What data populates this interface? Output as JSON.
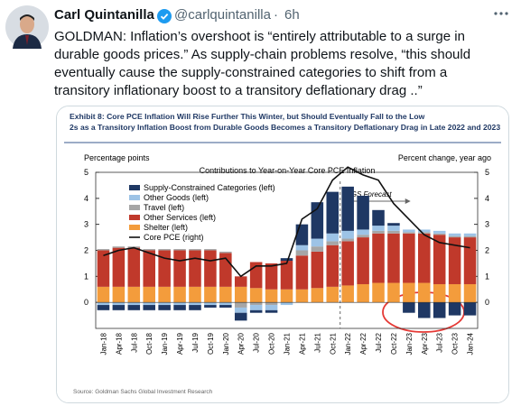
{
  "tweet": {
    "name": "Carl Quintanilla",
    "handle": "@carlquintanilla",
    "separator": "·",
    "time": "6h",
    "text": "GOLDMAN: Inflation’s overshoot is “entirely attributable to a surge in durable goods prices.” As supply-chain problems resolve, “this should eventually cause the supply-constrained categories to shift from a transitory inflationary boost to a transitory deflationary drag ..”"
  },
  "chart_data": {
    "type": "bar",
    "title": "Exhibit 8: Core PCE Inflation Will Rise Further This Winter, but Should Eventually Fall to the Low 2s as a Transitory Inflation Boost from Durable Goods Becomes a Transitory Deflationary Drag in Late 2022 and 2023",
    "subtitle": "Contributions to Year-on-Year Core PCE Inflation",
    "ylabel": "Percentage points",
    "y2label": "Percent change, year ago",
    "annotation": "GS Forecast",
    "source": "Source: Goldman Sachs Global Investment Research",
    "stacked": true,
    "categories": [
      "Jan-18",
      "Apr-18",
      "Jul-18",
      "Oct-18",
      "Jan-19",
      "Apr-19",
      "Jul-19",
      "Oct-19",
      "Jan-20",
      "Apr-20",
      "Jul-20",
      "Oct-20",
      "Jan-21",
      "Apr-21",
      "Jul-21",
      "Oct-21",
      "Jan-22",
      "Apr-22",
      "Jul-22",
      "Oct-22",
      "Jan-23",
      "Apr-23",
      "Jul-23",
      "Oct-23",
      "Jan-24"
    ],
    "series": [
      {
        "name": "Supply-Constrained Categories (left)",
        "color": "#1f3864",
        "values": [
          -0.2,
          -0.2,
          -0.2,
          -0.2,
          -0.2,
          -0.2,
          -0.2,
          -0.1,
          -0.1,
          -0.3,
          -0.1,
          -0.1,
          0.1,
          0.8,
          1.4,
          1.6,
          1.7,
          1.3,
          0.6,
          0.1,
          -0.4,
          -0.6,
          -0.6,
          -0.5,
          -0.5
        ]
      },
      {
        "name": "Other Goods  (left)",
        "color": "#9dc3e6",
        "values": [
          -0.1,
          -0.1,
          -0.1,
          -0.1,
          -0.1,
          -0.1,
          -0.1,
          -0.1,
          -0.1,
          -0.2,
          -0.2,
          -0.2,
          -0.1,
          0.2,
          0.3,
          0.3,
          0.3,
          0.2,
          0.2,
          0.2,
          0.1,
          0.1,
          0.1,
          0.1,
          0.1
        ]
      },
      {
        "name": "Travel (left)",
        "color": "#a6a6a6",
        "values": [
          0.05,
          0.05,
          0.05,
          0.05,
          0.05,
          0.05,
          0.05,
          0.05,
          0.05,
          -0.2,
          -0.1,
          -0.1,
          0,
          0.2,
          0.2,
          0.15,
          0.1,
          0.1,
          0.1,
          0.1,
          0.05,
          0.05,
          0.05,
          0.05,
          0.05
        ]
      },
      {
        "name": "Other Services  (left)",
        "color": "#c0392b",
        "values": [
          1.4,
          1.5,
          1.5,
          1.4,
          1.4,
          1.4,
          1.4,
          1.4,
          1.3,
          0.4,
          1.0,
          1.0,
          1.1,
          1.3,
          1.4,
          1.6,
          1.7,
          1.8,
          1.9,
          1.9,
          1.9,
          1.9,
          1.9,
          1.8,
          1.8
        ]
      },
      {
        "name": "Shelter (left)",
        "color": "#f39c3c",
        "values": [
          0.6,
          0.6,
          0.6,
          0.6,
          0.6,
          0.6,
          0.6,
          0.6,
          0.6,
          0.6,
          0.55,
          0.5,
          0.5,
          0.5,
          0.55,
          0.6,
          0.65,
          0.7,
          0.75,
          0.75,
          0.75,
          0.75,
          0.7,
          0.7,
          0.7
        ]
      },
      {
        "name": "Core PCE (right)",
        "color": "#111111",
        "type": "line",
        "axis": "y2",
        "values": [
          1.8,
          2.0,
          2.1,
          1.9,
          1.7,
          1.6,
          1.7,
          1.6,
          1.7,
          1.0,
          1.4,
          1.4,
          1.5,
          3.2,
          3.6,
          4.7,
          5.2,
          4.9,
          4.7,
          3.8,
          3.2,
          2.6,
          2.3,
          2.2,
          2.1
        ]
      }
    ],
    "ylim": [
      -1,
      5
    ],
    "yticks": [
      0,
      1,
      2,
      3,
      4,
      5
    ],
    "y2lim": [
      -1,
      5
    ],
    "y2ticks": [
      0,
      1,
      2,
      3,
      4,
      5
    ]
  }
}
